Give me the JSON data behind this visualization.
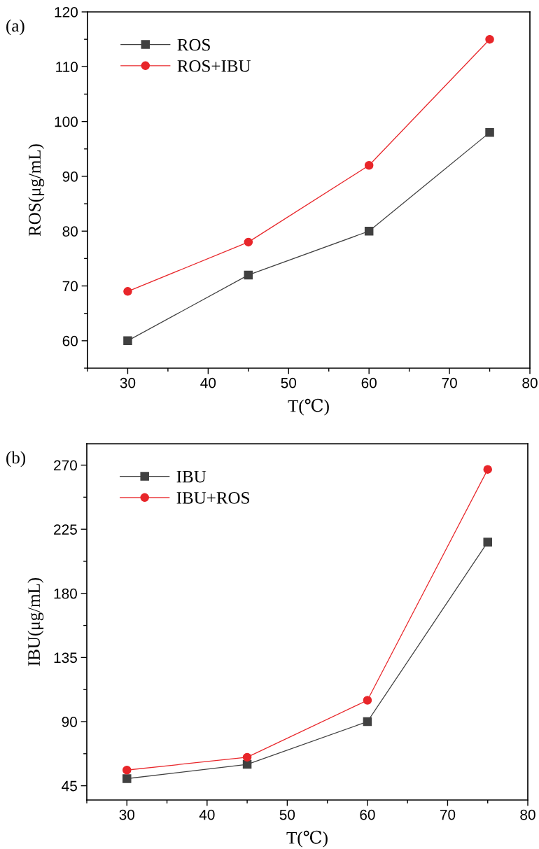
{
  "chart_data": [
    {
      "type": "line",
      "title": "(a)",
      "xlabel": "T(℃)",
      "ylabel": "ROS(μg/mL)",
      "x": [
        30,
        45,
        60,
        75
      ],
      "series": [
        {
          "name": "ROS",
          "color": "#404040",
          "marker": "square",
          "values": [
            60,
            72,
            80,
            98
          ]
        },
        {
          "name": "ROS+IBU",
          "color": "#e8262a",
          "marker": "circle",
          "values": [
            69,
            78,
            92,
            115
          ]
        }
      ],
      "xlim": [
        25,
        80
      ],
      "xticks": [
        30,
        40,
        50,
        60,
        70,
        80
      ],
      "ylim": [
        55,
        120
      ],
      "yticks": [
        60,
        70,
        80,
        90,
        100,
        110,
        120
      ],
      "grid": false,
      "legend": "top left",
      "line_style": "solid"
    },
    {
      "type": "line",
      "title": "(b)",
      "xlabel": "T(℃)",
      "ylabel": "IBU(μg/mL)",
      "x": [
        30,
        45,
        60,
        75
      ],
      "series": [
        {
          "name": "IBU",
          "color": "#404040",
          "marker": "square",
          "values": [
            50,
            60,
            90,
            216
          ]
        },
        {
          "name": "IBU+ROS",
          "color": "#e8262a",
          "marker": "circle",
          "values": [
            56,
            65,
            105,
            267
          ]
        }
      ],
      "xlim": [
        25,
        80
      ],
      "xticks": [
        30,
        40,
        50,
        60,
        70,
        80
      ],
      "ylim": [
        35,
        285
      ],
      "yticks": [
        45,
        90,
        135,
        180,
        225,
        270
      ],
      "grid": false,
      "legend": "top left",
      "line_style": "solid"
    }
  ]
}
